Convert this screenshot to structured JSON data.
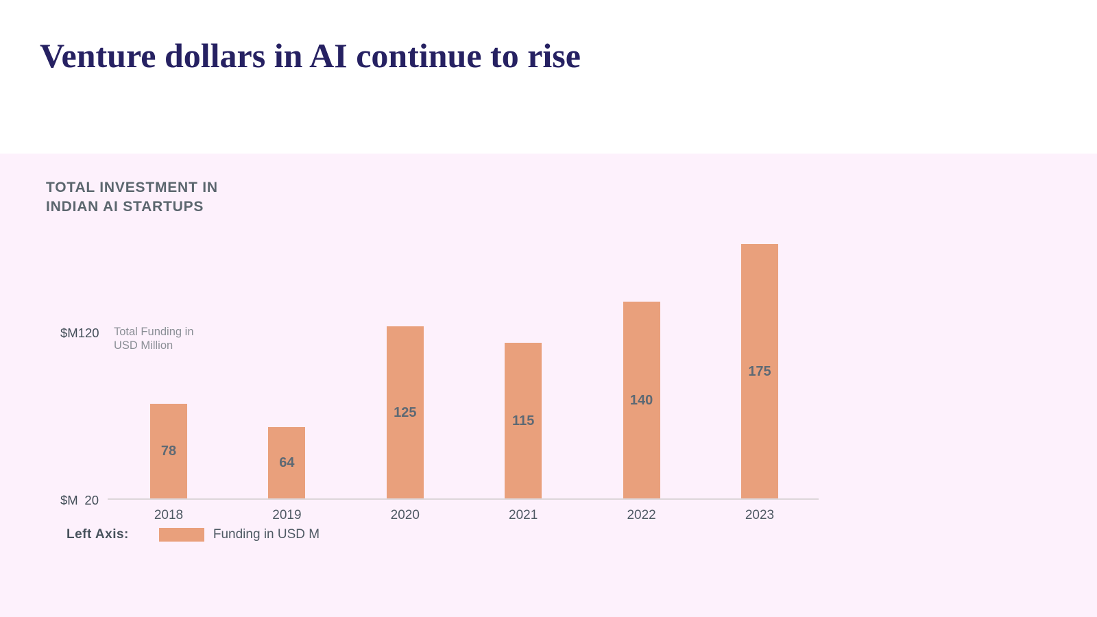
{
  "page": {
    "title": "Venture dollars in AI continue to rise"
  },
  "chart_section": {
    "title_line1": "TOTAL INVESTMENT IN",
    "title_line2": "INDIAN AI STARTUPS",
    "y_tick_top": {
      "prefix": "$M",
      "number": "120"
    },
    "y_tick_bottom": {
      "prefix": "$M",
      "number": "20"
    },
    "y_annotation_line1": "Total Funding in",
    "y_annotation_line2": "USD Million",
    "legend_prefix": "Left Axis:",
    "legend_label": "Funding in USD M"
  },
  "chart_data": {
    "type": "bar",
    "title": "TOTAL INVESTMENT IN INDIAN AI STARTUPS",
    "categories": [
      "2018",
      "2019",
      "2020",
      "2021",
      "2022",
      "2023"
    ],
    "values": [
      78,
      64,
      125,
      115,
      140,
      175
    ],
    "series_name": "Funding in USD M",
    "xlabel": "",
    "ylabel": "Total Funding in USD Million",
    "yticks": [
      {
        "value": 20,
        "label": "$M 20"
      },
      {
        "value": 120,
        "label": "$M 120"
      }
    ],
    "ylim": [
      20,
      180
    ],
    "baseline_value": 20,
    "grid": false,
    "legend_position": "bottom-left",
    "value_label_position": "inside-center",
    "bar_color": "#e9a07c"
  },
  "colors": {
    "page_background": "#ffffff",
    "panel_background": "#fdf1fc",
    "bar": "#e9a07c",
    "title": "#262162",
    "section_title": "#5b666e",
    "tick_label": "#434e58",
    "category_label": "#4f5a64",
    "value_label": "#5d6974",
    "annotation": "#8b8f96",
    "axis_line": "#ddd6da",
    "legend_prefix": "#47525c",
    "legend_label": "#4f5a64"
  }
}
